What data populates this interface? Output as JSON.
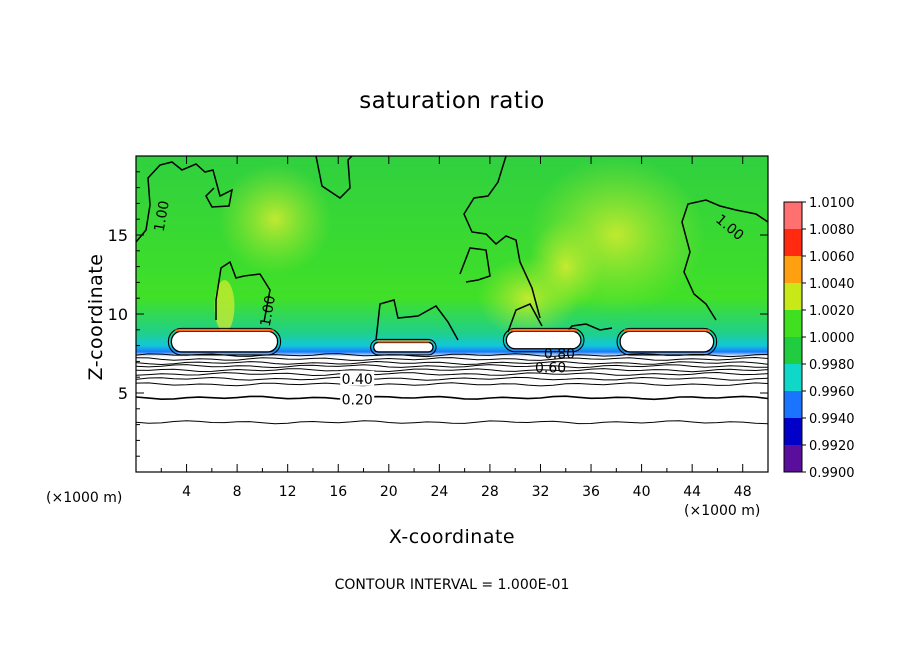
{
  "chart_data": {
    "type": "heatmap",
    "title": "saturation ratio",
    "xlabel": "X-coordinate",
    "ylabel": "Z-coordinate",
    "x_unit": "(×1000 m)",
    "xlim": [
      0,
      50
    ],
    "ylim": [
      0,
      20
    ],
    "x_ticks": [
      4,
      8,
      12,
      16,
      20,
      24,
      28,
      32,
      36,
      40,
      44,
      48
    ],
    "y_ticks": [
      5,
      10,
      15
    ],
    "colorbar": {
      "levels": [
        0.99,
        0.992,
        0.994,
        0.996,
        0.998,
        1.0,
        1.002,
        1.004,
        1.006,
        1.008,
        1.01
      ],
      "labels": [
        "0.9900",
        "0.9920",
        "0.9940",
        "0.9960",
        "0.9980",
        "1.0000",
        "1.0020",
        "1.0040",
        "1.0060",
        "1.0080",
        "1.0100"
      ],
      "colors": [
        "#5a0f9c",
        "#0000c8",
        "#1a74ff",
        "#10d8c8",
        "#20cc40",
        "#40e020",
        "#c8e818",
        "#ffa010",
        "#ff2a10",
        "#ff7070"
      ]
    },
    "contour_labels": [
      {
        "text": "1.00",
        "x": 2.0,
        "z": 16.2
      },
      {
        "text": "1.00",
        "x": 10.4,
        "z": 10.2
      },
      {
        "text": "1.00",
        "x": 47.0,
        "z": 15.5
      },
      {
        "text": "0.40",
        "x": 17.5,
        "z": 5.9
      },
      {
        "text": "0.20",
        "x": 17.5,
        "z": 4.6
      },
      {
        "text": "0.60",
        "x": 32.8,
        "z": 6.6
      },
      {
        "text": "0.80",
        "x": 33.5,
        "z": 7.5
      }
    ],
    "stratified_contours_z": [
      7.4,
      7.15,
      6.9,
      6.7,
      6.45,
      6.2,
      5.9,
      5.55,
      4.7,
      3.15
    ],
    "cloud_regions": [
      {
        "x0": 2.8,
        "x1": 11.2,
        "z0": 7.6,
        "z1": 8.9
      },
      {
        "x0": 18.8,
        "x1": 23.5,
        "z0": 7.6,
        "z1": 8.2
      },
      {
        "x0": 29.3,
        "x1": 35.2,
        "z0": 7.8,
        "z1": 8.9
      },
      {
        "x0": 38.3,
        "x1": 45.7,
        "z0": 7.6,
        "z1": 8.9
      }
    ],
    "contour_interval_text": "CONTOUR INTERVAL = 1.000E-01"
  }
}
